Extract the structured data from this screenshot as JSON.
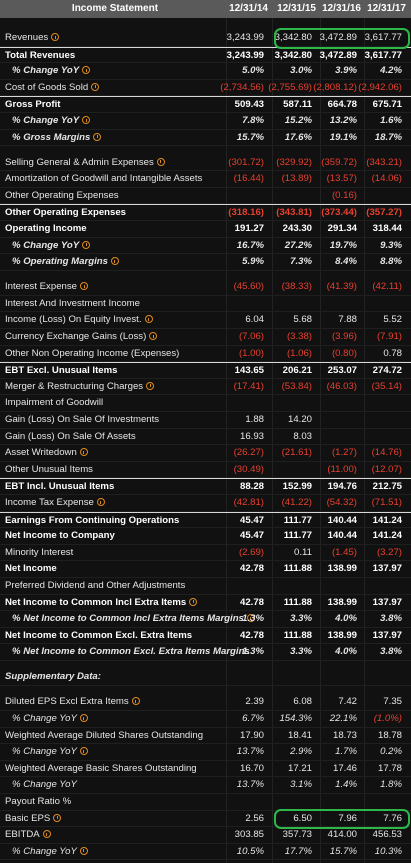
{
  "header": {
    "title": "Income Statement",
    "columns": [
      "12/31/14",
      "12/31/15",
      "12/31/16",
      "12/31/17"
    ]
  },
  "rows": [
    {
      "label": "Revenues",
      "values": [
        "3,243.99",
        "3,342.80",
        "3,472.89",
        "3,617.77"
      ]
    },
    {
      "label": "Total Revenues",
      "values": [
        "3,243.99",
        "3,342.80",
        "3,472.89",
        "3,617.77"
      ]
    },
    {
      "label": "% Change YoY",
      "values": [
        "5.0%",
        "3.0%",
        "3.9%",
        "4.2%"
      ]
    },
    {
      "label": "Cost of Goods Sold",
      "values": [
        "(2,734.56)",
        "(2,755.69)",
        "(2,808.12)",
        "(2,942.06)"
      ]
    },
    {
      "label": "Gross Profit",
      "values": [
        "509.43",
        "587.11",
        "664.78",
        "675.71"
      ]
    },
    {
      "label": "% Change YoY",
      "values": [
        "7.8%",
        "15.2%",
        "13.2%",
        "1.6%"
      ]
    },
    {
      "label": "% Gross Margins",
      "values": [
        "15.7%",
        "17.6%",
        "19.1%",
        "18.7%"
      ]
    },
    {
      "label": "Selling General & Admin Expenses",
      "values": [
        "(301.72)",
        "(329.92)",
        "(359.72)",
        "(343.21)"
      ]
    },
    {
      "label": "Amortization of Goodwill and Intangible Assets",
      "values": [
        "(16.44)",
        "(13.89)",
        "(13.57)",
        "(14.06)"
      ]
    },
    {
      "label": "Other Operating Expenses",
      "values": [
        null,
        null,
        "(0.16)",
        null
      ]
    },
    {
      "label": "Other Operating Expenses",
      "values": [
        "(318.16)",
        "(343.81)",
        "(373.44)",
        "(357.27)"
      ]
    },
    {
      "label": "Operating Income",
      "values": [
        "191.27",
        "243.30",
        "291.34",
        "318.44"
      ]
    },
    {
      "label": "% Change YoY",
      "values": [
        "16.7%",
        "27.2%",
        "19.7%",
        "9.3%"
      ]
    },
    {
      "label": "% Operating Margins",
      "values": [
        "5.9%",
        "7.3%",
        "8.4%",
        "8.8%"
      ]
    },
    {
      "label": "Interest Expense",
      "values": [
        "(45.60)",
        "(38.33)",
        "(41.39)",
        "(42.11)"
      ]
    },
    {
      "label": "Interest And Investment Income"
    },
    {
      "label": "Income (Loss) On Equity Invest.",
      "values": [
        "6.04",
        "5.68",
        "7.88",
        "5.52"
      ]
    },
    {
      "label": "Currency Exchange Gains (Loss)",
      "values": [
        "(7.06)",
        "(3.38)",
        "(3.96)",
        "(7.91)"
      ]
    },
    {
      "label": "Other Non Operating Income (Expenses)",
      "values": [
        "(1.00)",
        "(1.06)",
        "(0.80)",
        "0.78"
      ]
    },
    {
      "label": "EBT Excl. Unusual Items",
      "values": [
        "143.65",
        "206.21",
        "253.07",
        "274.72"
      ]
    },
    {
      "label": "Merger & Restructuring Charges",
      "values": [
        "(17.41)",
        "(53.84)",
        "(46.03)",
        "(35.14)"
      ]
    },
    {
      "label": "Impairment of Goodwill"
    },
    {
      "label": "Gain (Loss) On Sale Of Investments",
      "values": [
        "1.88",
        "14.20",
        null,
        null
      ]
    },
    {
      "label": "Gain (Loss) On Sale Of Assets",
      "values": [
        "16.93",
        "8.03",
        null,
        null
      ]
    },
    {
      "label": "Asset Writedown",
      "values": [
        "(26.27)",
        "(21.61)",
        "(1.27)",
        "(14.76)"
      ]
    },
    {
      "label": "Other Unusual Items",
      "values": [
        "(30.49)",
        null,
        "(11.00)",
        "(12.07)"
      ]
    },
    {
      "label": "EBT Incl. Unusual Items",
      "values": [
        "88.28",
        "152.99",
        "194.76",
        "212.75"
      ]
    },
    {
      "label": "Income Tax Expense",
      "values": [
        "(42.81)",
        "(41.22)",
        "(54.32)",
        "(71.51)"
      ]
    },
    {
      "label": "Earnings From Continuing Operations",
      "values": [
        "45.47",
        "111.77",
        "140.44",
        "141.24"
      ]
    },
    {
      "label": "Net Income to Company",
      "values": [
        "45.47",
        "111.77",
        "140.44",
        "141.24"
      ]
    },
    {
      "label": "Minority Interest",
      "values": [
        "(2.69)",
        "0.11",
        "(1.45)",
        "(3.27)"
      ]
    },
    {
      "label": "Net Income",
      "values": [
        "42.78",
        "111.88",
        "138.99",
        "137.97"
      ]
    },
    {
      "label": "Preferred Dividend and Other Adjustments"
    },
    {
      "label": "Net Income to Common Incl Extra Items",
      "values": [
        "42.78",
        "111.88",
        "138.99",
        "137.97"
      ]
    },
    {
      "label": "% Net Income to Common Incl Extra Items Margins",
      "values": [
        "1.3%",
        "3.3%",
        "4.0%",
        "3.8%"
      ]
    },
    {
      "label": "Net Income to Common Excl. Extra Items",
      "values": [
        "42.78",
        "111.88",
        "138.99",
        "137.97"
      ]
    },
    {
      "label": "% Net Income to Common Excl. Extra Items Margins",
      "values": [
        "1.3%",
        "3.3%",
        "4.0%",
        "3.8%"
      ]
    },
    {
      "label": "Supplementary Data:"
    },
    {
      "label": "Diluted EPS Excl Extra Items",
      "values": [
        "2.39",
        "6.08",
        "7.42",
        "7.35"
      ]
    },
    {
      "label": "% Change YoY",
      "values": [
        "6.7%",
        "154.3%",
        "22.1%",
        "(1.0%)"
      ]
    },
    {
      "label": "Weighted Average Diluted Shares Outstanding",
      "values": [
        "17.90",
        "18.41",
        "18.73",
        "18.78"
      ]
    },
    {
      "label": "% Change YoY",
      "values": [
        "13.7%",
        "2.9%",
        "1.7%",
        "0.2%"
      ]
    },
    {
      "label": "Weighted Average Basic Shares Outstanding",
      "values": [
        "16.70",
        "17.21",
        "17.46",
        "17.78"
      ]
    },
    {
      "label": "% Change YoY",
      "values": [
        "13.7%",
        "3.1%",
        "1.4%",
        "1.8%"
      ]
    },
    {
      "label": "Payout Ratio %"
    },
    {
      "label": "Basic EPS",
      "values": [
        "2.56",
        "6.50",
        "7.96",
        "7.76"
      ]
    },
    {
      "label": "EBITDA",
      "values": [
        "303.85",
        "357.73",
        "414.00",
        "456.53"
      ]
    },
    {
      "label": "% Change YoY",
      "values": [
        "10.5%",
        "17.7%",
        "15.7%",
        "10.3%"
      ]
    }
  ]
}
